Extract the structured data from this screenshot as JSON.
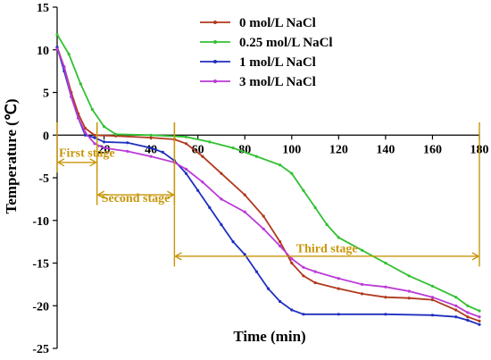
{
  "chart_data": {
    "type": "line",
    "xlabel": "Time (min)",
    "ylabel": "Temperature (℃)",
    "xlim": [
      0,
      180
    ],
    "ylim": [
      -25,
      15
    ],
    "x_ticks": [
      20,
      40,
      60,
      80,
      100,
      120,
      140,
      160,
      180
    ],
    "y_ticks": [
      15,
      10,
      5,
      0,
      -5,
      -10,
      -15,
      -20,
      -25
    ],
    "legend_position": "top-center",
    "grid": false,
    "series": [
      {
        "name": "0 mol/L NaCl",
        "color": "#b03a1e",
        "points": [
          [
            0,
            10.3
          ],
          [
            3,
            8
          ],
          [
            6,
            5
          ],
          [
            9,
            2.5
          ],
          [
            12,
            0.8
          ],
          [
            16,
            0
          ],
          [
            25,
            -0.1
          ],
          [
            40,
            -0.3
          ],
          [
            50,
            -0.5
          ],
          [
            55,
            -1
          ],
          [
            62,
            -2.5
          ],
          [
            70,
            -4.5
          ],
          [
            80,
            -7
          ],
          [
            88,
            -9.5
          ],
          [
            95,
            -12.5
          ],
          [
            100,
            -15
          ],
          [
            105,
            -16.5
          ],
          [
            110,
            -17.3
          ],
          [
            120,
            -18
          ],
          [
            130,
            -18.6
          ],
          [
            140,
            -19
          ],
          [
            150,
            -19.1
          ],
          [
            160,
            -19.3
          ],
          [
            170,
            -20.5
          ],
          [
            175,
            -21.3
          ],
          [
            180,
            -21.8
          ]
        ]
      },
      {
        "name": "0.25 mol/L NaCl",
        "color": "#32c032",
        "points": [
          [
            0,
            11.8
          ],
          [
            5,
            9.5
          ],
          [
            10,
            6
          ],
          [
            15,
            3
          ],
          [
            20,
            1
          ],
          [
            25,
            0.1
          ],
          [
            40,
            0
          ],
          [
            55,
            -0.2
          ],
          [
            65,
            -0.8
          ],
          [
            75,
            -1.5
          ],
          [
            85,
            -2.5
          ],
          [
            95,
            -3.5
          ],
          [
            100,
            -4.5
          ],
          [
            105,
            -6.5
          ],
          [
            110,
            -8.5
          ],
          [
            115,
            -10.5
          ],
          [
            120,
            -12
          ],
          [
            130,
            -13.5
          ],
          [
            140,
            -15
          ],
          [
            150,
            -16.5
          ],
          [
            160,
            -17.7
          ],
          [
            170,
            -19
          ],
          [
            175,
            -20
          ],
          [
            180,
            -20.6
          ]
        ]
      },
      {
        "name": "1 mol/L NaCl",
        "color": "#1f2fbf",
        "points": [
          [
            0,
            10.3
          ],
          [
            3,
            7.5
          ],
          [
            6,
            4.5
          ],
          [
            9,
            2
          ],
          [
            12,
            0
          ],
          [
            16,
            -0.3
          ],
          [
            20,
            -0.8
          ],
          [
            30,
            -0.9
          ],
          [
            40,
            -1.5
          ],
          [
            45,
            -2
          ],
          [
            50,
            -3
          ],
          [
            55,
            -4.5
          ],
          [
            60,
            -6.5
          ],
          [
            65,
            -8.5
          ],
          [
            70,
            -10.5
          ],
          [
            75,
            -12.5
          ],
          [
            80,
            -14
          ],
          [
            85,
            -16
          ],
          [
            90,
            -18
          ],
          [
            95,
            -19.5
          ],
          [
            100,
            -20.5
          ],
          [
            105,
            -21
          ],
          [
            120,
            -21
          ],
          [
            140,
            -21
          ],
          [
            160,
            -21.1
          ],
          [
            170,
            -21.3
          ],
          [
            175,
            -21.7
          ],
          [
            180,
            -22.2
          ]
        ]
      },
      {
        "name": "3 mol/L NaCl",
        "color": "#bb3ad8",
        "points": [
          [
            0,
            10.1
          ],
          [
            3,
            8
          ],
          [
            6,
            4.5
          ],
          [
            9,
            2
          ],
          [
            12,
            0.3
          ],
          [
            16,
            -1
          ],
          [
            20,
            -1.5
          ],
          [
            30,
            -1.9
          ],
          [
            40,
            -2.5
          ],
          [
            50,
            -3.2
          ],
          [
            55,
            -4
          ],
          [
            62,
            -5.5
          ],
          [
            70,
            -7.5
          ],
          [
            80,
            -9
          ],
          [
            88,
            -11
          ],
          [
            95,
            -13
          ],
          [
            100,
            -14.5
          ],
          [
            105,
            -15.5
          ],
          [
            110,
            -16
          ],
          [
            120,
            -16.8
          ],
          [
            130,
            -17.5
          ],
          [
            140,
            -17.8
          ],
          [
            150,
            -18.3
          ],
          [
            160,
            -19
          ],
          [
            170,
            -20
          ],
          [
            175,
            -20.8
          ],
          [
            180,
            -21.3
          ]
        ]
      }
    ],
    "annotations": [
      {
        "text": "First stage",
        "x_start": 0,
        "x_end": 17,
        "y": -3.2,
        "label_y": -2
      },
      {
        "text": "Second stage",
        "x_start": 17,
        "x_end": 50,
        "y": -7,
        "label_y": -7.3
      },
      {
        "text": "Third stage",
        "x_start": 50,
        "x_end": 180,
        "y": -14.2,
        "label_y": -13.2
      }
    ],
    "annotation_color": "#c8960a",
    "axis_color": "#000000"
  }
}
